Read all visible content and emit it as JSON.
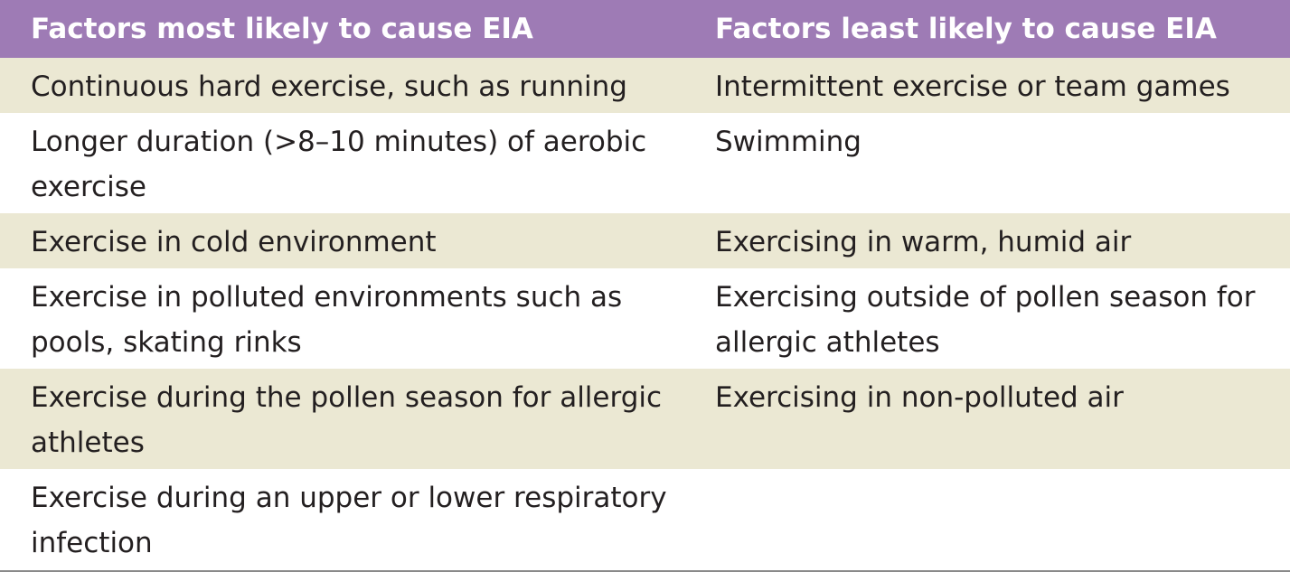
{
  "table": {
    "headers": [
      "Factors most likely to cause EIA",
      "Factors least likely to cause EIA"
    ],
    "rows": [
      {
        "most": "Continuous hard exercise, such as running",
        "least": "Intermittent exercise or team games"
      },
      {
        "most": "Longer duration (>8–10 minutes) of aerobic exercise",
        "least": "Swimming"
      },
      {
        "most": "Exercise in cold environment",
        "least": "Exercising in warm, humid air"
      },
      {
        "most": "Exercise in polluted environments such as pools, skating rinks",
        "least": "Exercising outside of pollen season for allergic athletes"
      },
      {
        "most": "Exercise during the pollen season for allergic athletes",
        "least": "Exercising in non-polluted air"
      },
      {
        "most": "Exercise during an upper or lower respiratory infection",
        "least": ""
      }
    ]
  },
  "colors": {
    "header_bg": "#9e7bb5",
    "header_text": "#ffffff",
    "shaded_row_bg": "#ebe8d3",
    "body_text": "#231f20"
  }
}
